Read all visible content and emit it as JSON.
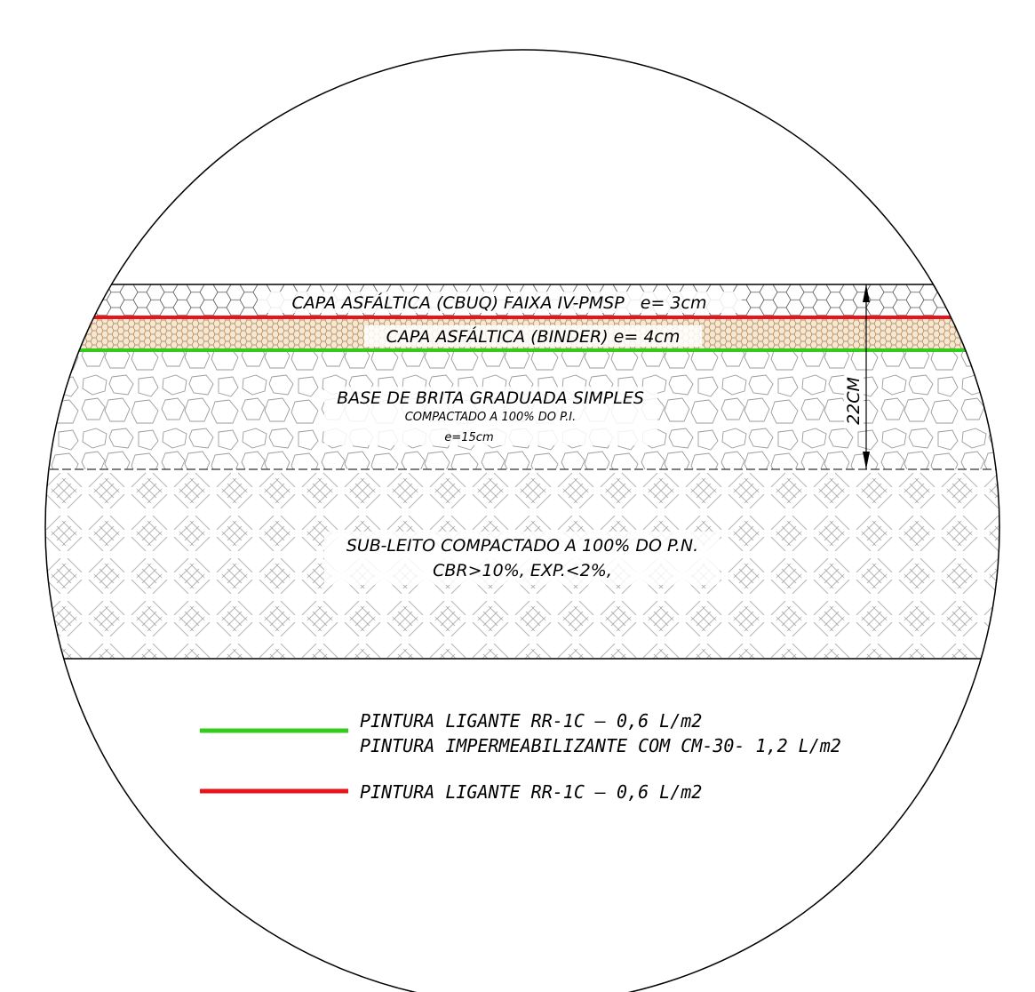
{
  "layers": {
    "cbuq": {
      "label": "CAPA ASFÁLTICA (CBUQ) FAIXA IV-PMSP   e= 3cm"
    },
    "binder": {
      "label": "CAPA ASFÁLTICA (BINDER) e= 4cm"
    },
    "base": {
      "label": "BASE DE BRITA GRADUADA SIMPLES",
      "line2": "COMPACTADO A 100% DO P.I.",
      "line3": "e=15cm"
    },
    "subleito": {
      "label": "SUB-LEITO COMPACTADO A 100% DO P.N.",
      "line2": "CBR>10%, EXP.<2%,"
    }
  },
  "dimension": {
    "label": "22CM"
  },
  "legend": {
    "green": {
      "color": "#33cc1a",
      "line1": "PINTURA LIGANTE RR-1C – 0,6 L/m2",
      "line2": "PINTURA IMPERMEABILIZANTE COM CM-30- 1,2 L/m2"
    },
    "red": {
      "color": "#e8141c",
      "line1": "PINTURA LIGANTE RR-1C – 0,6 L/m2"
    }
  }
}
